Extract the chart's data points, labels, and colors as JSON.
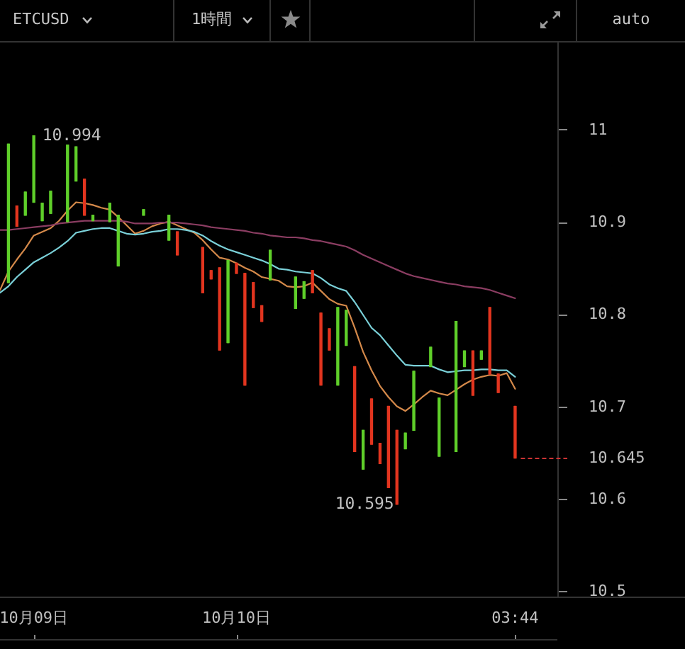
{
  "chart_data": {
    "type": "candlestick",
    "title": "ETCUSD",
    "annotations": [
      "1時間",
      "auto",
      {
        "text": "10.994",
        "x": "10月09日",
        "y": 10.994
      },
      "10.595"
    ],
    "categories": [
      null,
      null,
      null,
      null,
      "10月09日",
      null,
      null,
      null,
      null,
      null,
      null,
      null,
      null,
      null,
      null,
      null,
      null,
      null,
      null,
      null,
      null,
      null,
      null,
      null,
      null,
      null,
      null,
      null,
      "10月10日",
      null,
      null,
      null,
      null,
      null,
      null,
      null,
      null,
      null,
      null,
      null,
      null,
      null,
      null,
      null,
      null,
      null,
      null,
      null,
      null,
      null,
      null,
      null,
      null,
      null,
      null,
      null,
      null,
      null,
      null,
      null,
      null,
      "03:44",
      null,
      null,
      null,
      null,
      null
    ],
    "ohlc": [
      null,
      [
        10.835,
        10.985,
        10.835,
        10.985
      ],
      [
        10.918,
        10.918,
        10.896,
        10.896
      ],
      [
        10.908,
        10.933,
        10.908,
        10.933
      ],
      [
        10.922,
        10.994,
        10.922,
        10.994
      ],
      [
        10.902,
        10.921,
        10.902,
        10.921
      ],
      [
        10.91,
        10.934,
        10.91,
        10.934
      ],
      null,
      [
        10.901,
        10.984,
        10.901,
        10.984
      ],
      [
        10.945,
        10.982,
        10.945,
        10.982
      ],
      [
        10.947,
        10.947,
        10.908,
        10.908
      ],
      [
        10.902,
        10.908,
        10.902,
        10.908
      ],
      null,
      [
        10.901,
        10.921,
        10.901,
        10.921
      ],
      [
        10.853,
        10.908,
        10.853,
        10.908
      ],
      null,
      null,
      [
        10.908,
        10.914,
        10.908,
        10.914
      ],
      null,
      null,
      [
        10.881,
        10.908,
        10.881,
        10.908
      ],
      [
        10.89,
        10.89,
        10.865,
        10.865
      ],
      null,
      null,
      [
        10.873,
        10.873,
        10.824,
        10.824
      ],
      [
        10.848,
        10.848,
        10.839,
        10.839
      ],
      [
        10.851,
        10.851,
        10.762,
        10.762
      ],
      [
        10.77,
        10.859,
        10.77,
        10.859
      ],
      [
        10.856,
        10.856,
        10.845,
        10.845
      ],
      [
        10.845,
        10.845,
        10.724,
        10.724
      ],
      [
        10.835,
        10.835,
        10.808,
        10.808
      ],
      [
        10.81,
        10.81,
        10.793,
        10.793
      ],
      [
        10.838,
        10.87,
        10.838,
        10.87
      ],
      null,
      null,
      [
        10.807,
        10.841,
        10.807,
        10.841
      ],
      [
        10.818,
        10.836,
        10.818,
        10.836
      ],
      [
        10.848,
        10.848,
        10.824,
        10.824
      ],
      [
        10.802,
        10.802,
        10.724,
        10.724
      ],
      [
        10.785,
        10.785,
        10.762,
        10.762
      ],
      [
        10.724,
        10.808,
        10.724,
        10.808
      ],
      [
        10.767,
        10.805,
        10.767,
        10.805
      ],
      [
        10.744,
        10.744,
        10.652,
        10.652
      ],
      [
        10.633,
        10.675,
        10.633,
        10.675
      ],
      [
        10.709,
        10.709,
        10.66,
        10.66
      ],
      [
        10.661,
        10.661,
        10.639,
        10.639
      ],
      [
        10.701,
        10.701,
        10.613,
        10.613
      ],
      [
        10.675,
        10.675,
        10.595,
        10.595
      ],
      [
        10.655,
        10.672,
        10.655,
        10.672
      ],
      [
        10.675,
        10.739,
        10.675,
        10.739
      ],
      null,
      [
        10.744,
        10.765,
        10.744,
        10.765
      ],
      [
        10.647,
        10.71,
        10.647,
        10.71
      ],
      null,
      [
        10.652,
        10.793,
        10.652,
        10.793
      ],
      [
        10.744,
        10.761,
        10.744,
        10.761
      ],
      [
        10.761,
        10.761,
        10.713,
        10.713
      ],
      [
        10.752,
        10.761,
        10.752,
        10.761
      ],
      [
        10.808,
        10.808,
        10.736,
        10.736
      ],
      [
        10.736,
        10.736,
        10.716,
        10.716
      ],
      null,
      [
        10.701,
        10.701,
        10.645,
        10.645
      ],
      null,
      null,
      null,
      null,
      null
    ],
    "colors": [
      null,
      "#5fcf2a",
      "#e2351f",
      "#5fcf2a",
      "#5fcf2a",
      "#5fcf2a",
      "#5fcf2a",
      null,
      "#5fcf2a",
      "#5fcf2a",
      "#e2351f",
      "#5fcf2a",
      null,
      "#5fcf2a",
      "#5fcf2a",
      null,
      null,
      "#5fcf2a",
      null,
      null,
      "#5fcf2a",
      "#e2351f",
      null,
      null,
      "#e2351f",
      "#e2351f",
      "#e2351f",
      "#5fcf2a",
      "#e2351f",
      "#e2351f",
      "#e2351f",
      "#e2351f",
      "#5fcf2a",
      null,
      null,
      "#5fcf2a",
      "#5fcf2a",
      "#e2351f",
      "#e2351f",
      "#e2351f",
      "#5fcf2a",
      "#5fcf2a",
      "#e2351f",
      "#5fcf2a",
      "#e2351f",
      "#e2351f",
      "#e2351f",
      "#e2351f",
      "#5fcf2a",
      "#5fcf2a",
      null,
      "#5fcf2a",
      "#5fcf2a",
      null,
      "#5fcf2a",
      "#5fcf2a",
      "#e2351f",
      "#5fcf2a",
      "#e2351f",
      "#e2351f",
      null,
      "#e2351f",
      null,
      null,
      null,
      null,
      null
    ],
    "series": [
      {
        "type": "line",
        "color": "#8b3d62",
        "values": [
          10.892,
          10.892,
          10.893,
          10.894,
          10.895,
          10.896,
          10.897,
          10.899,
          10.9,
          10.901,
          10.902,
          10.902,
          10.902,
          10.902,
          10.902,
          10.901,
          10.899,
          10.899,
          10.899,
          10.9,
          10.9,
          10.9,
          10.899,
          10.898,
          10.897,
          10.895,
          10.894,
          10.893,
          10.892,
          10.891,
          10.889,
          10.888,
          10.886,
          10.885,
          10.884,
          10.884,
          10.883,
          10.881,
          10.88,
          10.878,
          10.876,
          10.874,
          10.87,
          10.865,
          10.861,
          10.857,
          10.853,
          10.849,
          10.845,
          10.842,
          10.84,
          10.838,
          10.836,
          10.834,
          10.833,
          10.831,
          10.83,
          10.829,
          10.827,
          10.824,
          10.821,
          10.818,
          null,
          null,
          null,
          null,
          null
        ]
      },
      {
        "type": "line",
        "color": "#7ad0d8",
        "values": [
          10.824,
          10.831,
          10.841,
          10.849,
          10.857,
          10.862,
          10.867,
          10.873,
          10.88,
          10.889,
          10.891,
          10.893,
          10.894,
          10.894,
          10.891,
          10.888,
          10.887,
          10.888,
          10.89,
          10.891,
          10.893,
          10.893,
          10.892,
          10.89,
          10.886,
          10.88,
          10.875,
          10.871,
          10.868,
          10.865,
          10.862,
          10.859,
          10.855,
          10.85,
          10.849,
          10.847,
          10.846,
          10.845,
          10.84,
          10.833,
          10.829,
          10.826,
          10.814,
          10.8,
          10.786,
          10.778,
          10.767,
          10.756,
          10.746,
          10.745,
          10.745,
          10.745,
          10.741,
          10.738,
          10.739,
          10.74,
          10.74,
          10.741,
          10.741,
          10.74,
          10.74,
          10.733,
          null,
          null,
          null,
          null,
          null
        ]
      },
      {
        "type": "line",
        "color": "#d4894a",
        "values": [
          10.827,
          10.847,
          10.86,
          10.872,
          10.886,
          10.89,
          10.894,
          10.902,
          10.913,
          10.922,
          10.921,
          10.919,
          10.916,
          10.914,
          10.906,
          10.897,
          10.888,
          10.891,
          10.896,
          10.899,
          10.901,
          10.897,
          10.893,
          10.889,
          10.881,
          10.871,
          10.862,
          10.86,
          10.856,
          10.851,
          10.847,
          10.841,
          10.839,
          10.837,
          10.831,
          10.83,
          10.831,
          10.835,
          10.826,
          10.817,
          10.812,
          10.81,
          10.786,
          10.76,
          10.74,
          10.723,
          10.711,
          10.701,
          10.696,
          10.703,
          10.711,
          10.718,
          10.715,
          10.713,
          10.719,
          10.725,
          10.73,
          10.733,
          10.735,
          10.734,
          10.737,
          10.72,
          null,
          null,
          null,
          null,
          null
        ]
      }
    ],
    "ylim": [
      10.495,
      11.095
    ],
    "yticks": [
      10.5,
      10.6,
      10.7,
      10.8,
      10.9,
      11
    ],
    "ref_lines": [
      {
        "axis": "y",
        "value": 10.645,
        "label": "10.645",
        "color": "#cc3333",
        "line_style": "dashed"
      }
    ],
    "marker": "none"
  }
}
